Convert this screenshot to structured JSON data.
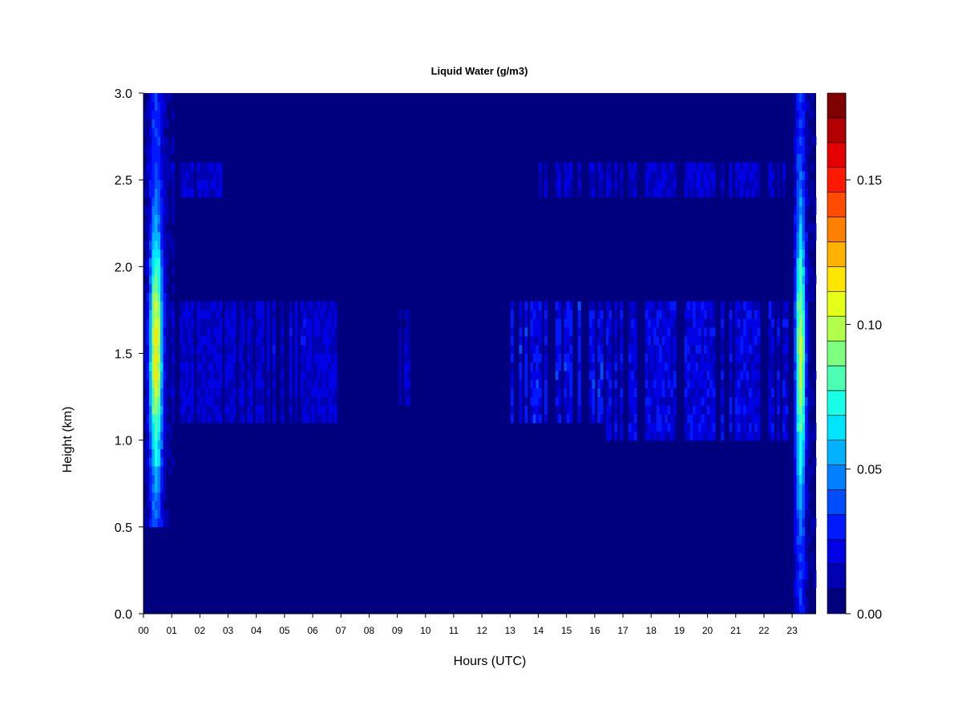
{
  "chart_data": {
    "type": "heatmap",
    "title": "Liquid Water (g/m3)",
    "xlabel": "Hours (UTC)",
    "ylabel": "Height (km)",
    "xlim": [
      0,
      23.85
    ],
    "ylim": [
      0,
      3.0
    ],
    "x_tick_labels": [
      "00",
      "01",
      "02",
      "03",
      "04",
      "05",
      "06",
      "07",
      "08",
      "09",
      "10",
      "11",
      "12",
      "13",
      "14",
      "15",
      "16",
      "17",
      "18",
      "19",
      "20",
      "21",
      "22",
      "23"
    ],
    "y_ticks": [
      0.0,
      0.5,
      1.0,
      1.5,
      2.0,
      2.5,
      3.0
    ],
    "y_tick_labels": [
      "0.0",
      "0.5",
      "1.0",
      "1.5",
      "2.0",
      "2.5",
      "3.0"
    ],
    "colorbar": {
      "min": 0.0,
      "max": 0.18,
      "tick_values": [
        0.0,
        0.05,
        0.1,
        0.15
      ],
      "tick_labels": [
        "0.00",
        "0.05",
        "0.10",
        "0.15"
      ],
      "level_colors": [
        "#00007F",
        "#0000B2",
        "#0000E5",
        "#0019FF",
        "#004CFF",
        "#007FFF",
        "#00B2FF",
        "#00E5FF",
        "#19FFE5",
        "#4CFFB2",
        "#7FFF7F",
        "#B2FF4C",
        "#E5FF19",
        "#FFE500",
        "#FFB200",
        "#FF7F00",
        "#FF4C00",
        "#FF1900",
        "#E50000",
        "#B20000",
        "#7F0000"
      ]
    },
    "background_value": 0.0,
    "regions": [
      {
        "t0": 0.0,
        "t1": 1.05,
        "h0": 0.5,
        "h1": 3.0,
        "peak": 0.11,
        "center_t": 0.45,
        "center_h": 1.5
      },
      {
        "t0": 0.0,
        "t1": 2.9,
        "h0": 2.4,
        "h1": 2.6,
        "peak": 0.025
      },
      {
        "t0": 0.9,
        "t1": 6.9,
        "h0": 1.1,
        "h1": 1.8,
        "peak": 0.025
      },
      {
        "t0": 4.5,
        "t1": 5.8,
        "h0": 1.4,
        "h1": 1.7,
        "peak": 0.03
      },
      {
        "t0": 9.0,
        "t1": 9.4,
        "h0": 1.2,
        "h1": 1.75,
        "peak": 0.02
      },
      {
        "t0": 13.0,
        "t1": 16.3,
        "h0": 1.1,
        "h1": 1.8,
        "peak": 0.035
      },
      {
        "t0": 14.0,
        "t1": 22.8,
        "h0": 2.4,
        "h1": 2.6,
        "peak": 0.025
      },
      {
        "t0": 16.3,
        "t1": 22.9,
        "h0": 1.0,
        "h1": 1.8,
        "peak": 0.03
      },
      {
        "t0": 23.05,
        "t1": 23.85,
        "h0": 0.0,
        "h1": 3.0,
        "peak": 0.1,
        "center_t": 23.3,
        "center_h": 1.5
      }
    ]
  }
}
